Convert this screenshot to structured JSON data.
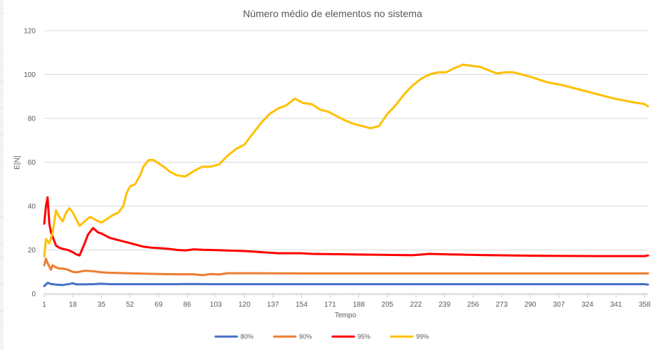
{
  "chart_data": {
    "type": "line",
    "title": "Número médio de elementos no sistema",
    "xlabel": "Tempo",
    "ylabel": "E[N]",
    "ylim": [
      0,
      120
    ],
    "yticks": [
      0,
      20,
      40,
      60,
      80,
      100,
      120
    ],
    "xlim": [
      1,
      360
    ],
    "xticks": [
      1,
      18,
      35,
      52,
      69,
      86,
      103,
      120,
      137,
      154,
      171,
      188,
      205,
      222,
      239,
      256,
      273,
      290,
      307,
      324,
      341,
      358
    ],
    "grid": true,
    "legend_position": "bottom",
    "series": [
      {
        "name": "80%",
        "color": "#4472C4",
        "x": [
          1,
          3,
          5,
          8,
          12,
          16,
          18,
          20,
          25,
          30,
          35,
          40,
          50,
          60,
          70,
          80,
          90,
          100,
          120,
          150,
          200,
          250,
          300,
          350,
          358,
          360
        ],
        "y": [
          3.5,
          5,
          4.5,
          4.2,
          4.0,
          4.5,
          4.8,
          4.3,
          4.3,
          4.4,
          4.6,
          4.4,
          4.4,
          4.4,
          4.4,
          4.4,
          4.5,
          4.4,
          4.4,
          4.4,
          4.4,
          4.4,
          4.4,
          4.4,
          4.4,
          4.2
        ]
      },
      {
        "name": "90%",
        "color": "#ED7D31",
        "x": [
          1,
          2,
          3,
          5,
          6,
          8,
          10,
          12,
          15,
          18,
          20,
          25,
          30,
          35,
          40,
          50,
          60,
          70,
          80,
          90,
          95,
          100,
          105,
          110,
          120,
          150,
          200,
          250,
          300,
          358,
          360
        ],
        "y": [
          13,
          16,
          14,
          11,
          13,
          12,
          11.5,
          11.5,
          11,
          10,
          9.8,
          10.5,
          10.3,
          9.8,
          9.6,
          9.4,
          9.2,
          9.0,
          8.9,
          8.9,
          8.5,
          9.0,
          8.8,
          9.4,
          9.4,
          9.3,
          9.3,
          9.3,
          9.3,
          9.3,
          9.3
        ]
      },
      {
        "name": "95%",
        "color": "#FF0000",
        "x": [
          1,
          2,
          3,
          4,
          5,
          6,
          8,
          10,
          12,
          15,
          18,
          20,
          22,
          25,
          27,
          30,
          33,
          35,
          40,
          45,
          50,
          55,
          60,
          65,
          70,
          75,
          80,
          85,
          90,
          95,
          100,
          120,
          140,
          154,
          160,
          180,
          200,
          220,
          230,
          240,
          260,
          280,
          300,
          330,
          358,
          360
        ],
        "y": [
          32,
          40,
          44,
          32,
          28,
          26,
          22,
          21,
          20.5,
          20,
          19,
          18,
          17.5,
          23,
          27,
          30,
          28,
          27.5,
          25.5,
          24.5,
          23.5,
          22.5,
          21.5,
          21,
          20.8,
          20.5,
          20,
          19.8,
          20.3,
          20.1,
          20,
          19.5,
          18.5,
          18.5,
          18.2,
          18,
          17.8,
          17.6,
          18.2,
          18.0,
          17.7,
          17.5,
          17.3,
          17.2,
          17.2,
          17.5
        ]
      },
      {
        "name": "99%",
        "color": "#FFC000",
        "x": [
          1,
          2,
          4,
          6,
          8,
          10,
          12,
          14,
          16,
          18,
          20,
          22,
          25,
          28,
          30,
          32,
          35,
          40,
          42,
          45,
          48,
          50,
          52,
          55,
          58,
          60,
          63,
          66,
          69,
          72,
          76,
          80,
          85,
          90,
          95,
          100,
          105,
          110,
          115,
          120,
          125,
          130,
          135,
          140,
          145,
          150,
          155,
          160,
          165,
          170,
          175,
          180,
          185,
          190,
          195,
          200,
          205,
          210,
          215,
          220,
          225,
          230,
          235,
          240,
          245,
          250,
          255,
          260,
          265,
          270,
          275,
          280,
          290,
          300,
          310,
          320,
          330,
          340,
          350,
          358,
          360
        ],
        "y": [
          17,
          25,
          23,
          28,
          38,
          35,
          33,
          37,
          39,
          37,
          34,
          31,
          33,
          35,
          34.5,
          33.5,
          32.5,
          35,
          36,
          37,
          40,
          46,
          49,
          50,
          54,
          58,
          61,
          61,
          59.5,
          58,
          55.5,
          54,
          53.5,
          56,
          58,
          58,
          59,
          63,
          66,
          68,
          73,
          78,
          82,
          84.5,
          86,
          89,
          87,
          86.5,
          84,
          83,
          81,
          79,
          77.5,
          76.5,
          75.5,
          76.5,
          82,
          86,
          91,
          95,
          98,
          100,
          101,
          101,
          103,
          104.5,
          104,
          103.5,
          102,
          100.5,
          101,
          101,
          99,
          96.5,
          95,
          93,
          91,
          89,
          87.5,
          86.5,
          85.5
        ]
      }
    ]
  }
}
